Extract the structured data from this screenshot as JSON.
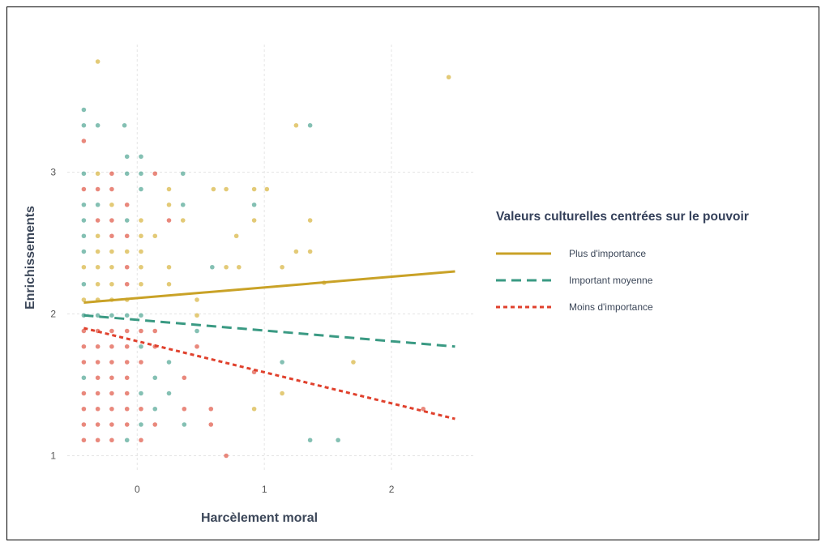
{
  "chart_data": {
    "type": "scatter",
    "xlabel": "Harcèlement moral",
    "ylabel": "Enrichissements",
    "xlim": [
      -0.55,
      2.65
    ],
    "ylim": [
      0.9,
      3.9
    ],
    "x_ticks": [
      0,
      1,
      2
    ],
    "y_ticks": [
      1,
      2,
      3
    ],
    "x_tick_labels": [
      "0",
      "1",
      "2"
    ],
    "y_tick_labels": [
      "1",
      "2",
      "3"
    ],
    "grid": true,
    "legend_placement": "right",
    "legend": {
      "title": "Valeurs culturelles centrées sur le pouvoir",
      "entries": [
        {
          "label": "Plus d'importance",
          "color": "#c9a227",
          "line_style": "solid"
        },
        {
          "label": "Important moyenne",
          "color": "#3a9a83",
          "line_style": "dashed"
        },
        {
          "label": "Moins d'importance",
          "color": "#e0412d",
          "line_style": "dotted"
        }
      ]
    },
    "lines": [
      {
        "name": "Plus d'importance",
        "color": "#c9a227",
        "style": "solid",
        "x": [
          -0.42,
          2.5
        ],
        "y": [
          2.08,
          2.3
        ]
      },
      {
        "name": "Important moyenne",
        "color": "#3a9a83",
        "style": "dashed",
        "x": [
          -0.42,
          2.5
        ],
        "y": [
          1.99,
          1.77
        ]
      },
      {
        "name": "Moins d'importance",
        "color": "#e0412d",
        "style": "dotted",
        "x": [
          -0.42,
          2.5
        ],
        "y": [
          1.9,
          1.26
        ]
      }
    ],
    "points": [
      {
        "x": -0.42,
        "y": 1.11,
        "c": "r"
      },
      {
        "x": -0.31,
        "y": 1.11,
        "c": "r"
      },
      {
        "x": -0.2,
        "y": 1.11,
        "c": "r"
      },
      {
        "x": -0.08,
        "y": 1.11,
        "c": "g"
      },
      {
        "x": 0.03,
        "y": 1.11,
        "c": "r"
      },
      {
        "x": -0.42,
        "y": 1.22,
        "c": "r"
      },
      {
        "x": -0.31,
        "y": 1.22,
        "c": "r"
      },
      {
        "x": -0.2,
        "y": 1.22,
        "c": "r"
      },
      {
        "x": -0.08,
        "y": 1.22,
        "c": "r"
      },
      {
        "x": 0.03,
        "y": 1.22,
        "c": "g"
      },
      {
        "x": 0.14,
        "y": 1.22,
        "c": "r"
      },
      {
        "x": 0.37,
        "y": 1.22,
        "c": "g"
      },
      {
        "x": -0.42,
        "y": 1.33,
        "c": "r"
      },
      {
        "x": -0.31,
        "y": 1.33,
        "c": "r"
      },
      {
        "x": -0.2,
        "y": 1.33,
        "c": "r"
      },
      {
        "x": -0.08,
        "y": 1.33,
        "c": "r"
      },
      {
        "x": 0.03,
        "y": 1.33,
        "c": "r"
      },
      {
        "x": 0.14,
        "y": 1.33,
        "c": "g"
      },
      {
        "x": 0.37,
        "y": 1.33,
        "c": "r"
      },
      {
        "x": -0.42,
        "y": 1.44,
        "c": "r"
      },
      {
        "x": -0.31,
        "y": 1.44,
        "c": "r"
      },
      {
        "x": -0.2,
        "y": 1.44,
        "c": "r"
      },
      {
        "x": -0.08,
        "y": 1.44,
        "c": "r"
      },
      {
        "x": 0.03,
        "y": 1.44,
        "c": "g"
      },
      {
        "x": 0.25,
        "y": 1.44,
        "c": "g"
      },
      {
        "x": -0.42,
        "y": 1.55,
        "c": "g"
      },
      {
        "x": -0.31,
        "y": 1.55,
        "c": "r"
      },
      {
        "x": -0.2,
        "y": 1.55,
        "c": "r"
      },
      {
        "x": -0.08,
        "y": 1.55,
        "c": "r"
      },
      {
        "x": 0.14,
        "y": 1.55,
        "c": "g"
      },
      {
        "x": 0.37,
        "y": 1.55,
        "c": "r"
      },
      {
        "x": -0.42,
        "y": 1.66,
        "c": "r"
      },
      {
        "x": -0.31,
        "y": 1.66,
        "c": "r"
      },
      {
        "x": -0.2,
        "y": 1.66,
        "c": "r"
      },
      {
        "x": -0.08,
        "y": 1.66,
        "c": "r"
      },
      {
        "x": 0.03,
        "y": 1.66,
        "c": "r"
      },
      {
        "x": 0.25,
        "y": 1.66,
        "c": "g"
      },
      {
        "x": -0.42,
        "y": 1.77,
        "c": "r"
      },
      {
        "x": -0.31,
        "y": 1.77,
        "c": "r"
      },
      {
        "x": -0.2,
        "y": 1.77,
        "c": "r"
      },
      {
        "x": -0.08,
        "y": 1.77,
        "c": "r"
      },
      {
        "x": 0.03,
        "y": 1.77,
        "c": "g"
      },
      {
        "x": 0.14,
        "y": 1.77,
        "c": "r"
      },
      {
        "x": -0.42,
        "y": 1.88,
        "c": "r"
      },
      {
        "x": -0.31,
        "y": 1.88,
        "c": "r"
      },
      {
        "x": -0.2,
        "y": 1.88,
        "c": "r"
      },
      {
        "x": -0.08,
        "y": 1.88,
        "c": "r"
      },
      {
        "x": 0.03,
        "y": 1.88,
        "c": "r"
      },
      {
        "x": 0.14,
        "y": 1.88,
        "c": "r"
      },
      {
        "x": -0.42,
        "y": 1.99,
        "c": "g"
      },
      {
        "x": -0.31,
        "y": 1.99,
        "c": "g"
      },
      {
        "x": -0.2,
        "y": 1.99,
        "c": "g"
      },
      {
        "x": -0.08,
        "y": 1.99,
        "c": "g"
      },
      {
        "x": 0.03,
        "y": 1.99,
        "c": "g"
      },
      {
        "x": -0.42,
        "y": 2.1,
        "c": "y"
      },
      {
        "x": -0.31,
        "y": 2.1,
        "c": "y"
      },
      {
        "x": -0.2,
        "y": 2.1,
        "c": "y"
      },
      {
        "x": -0.08,
        "y": 2.1,
        "c": "y"
      },
      {
        "x": -0.42,
        "y": 2.21,
        "c": "g"
      },
      {
        "x": -0.31,
        "y": 2.21,
        "c": "y"
      },
      {
        "x": -0.2,
        "y": 2.21,
        "c": "y"
      },
      {
        "x": -0.08,
        "y": 2.21,
        "c": "r"
      },
      {
        "x": 0.03,
        "y": 2.21,
        "c": "y"
      },
      {
        "x": 0.25,
        "y": 2.21,
        "c": "y"
      },
      {
        "x": -0.42,
        "y": 2.33,
        "c": "y"
      },
      {
        "x": -0.31,
        "y": 2.33,
        "c": "y"
      },
      {
        "x": -0.2,
        "y": 2.33,
        "c": "y"
      },
      {
        "x": -0.08,
        "y": 2.33,
        "c": "r"
      },
      {
        "x": 0.03,
        "y": 2.33,
        "c": "y"
      },
      {
        "x": 0.25,
        "y": 2.33,
        "c": "y"
      },
      {
        "x": -0.42,
        "y": 2.44,
        "c": "g"
      },
      {
        "x": -0.31,
        "y": 2.44,
        "c": "y"
      },
      {
        "x": -0.2,
        "y": 2.44,
        "c": "y"
      },
      {
        "x": -0.08,
        "y": 2.44,
        "c": "y"
      },
      {
        "x": 0.03,
        "y": 2.44,
        "c": "y"
      },
      {
        "x": -0.42,
        "y": 2.55,
        "c": "g"
      },
      {
        "x": -0.31,
        "y": 2.55,
        "c": "y"
      },
      {
        "x": -0.2,
        "y": 2.55,
        "c": "r"
      },
      {
        "x": -0.08,
        "y": 2.55,
        "c": "r"
      },
      {
        "x": 0.03,
        "y": 2.55,
        "c": "y"
      },
      {
        "x": 0.14,
        "y": 2.55,
        "c": "y"
      },
      {
        "x": -0.42,
        "y": 2.66,
        "c": "g"
      },
      {
        "x": -0.31,
        "y": 2.66,
        "c": "r"
      },
      {
        "x": -0.2,
        "y": 2.66,
        "c": "r"
      },
      {
        "x": -0.08,
        "y": 2.66,
        "c": "g"
      },
      {
        "x": 0.03,
        "y": 2.66,
        "c": "y"
      },
      {
        "x": 0.25,
        "y": 2.66,
        "c": "r"
      },
      {
        "x": 0.36,
        "y": 2.66,
        "c": "y"
      },
      {
        "x": -0.42,
        "y": 2.77,
        "c": "g"
      },
      {
        "x": -0.31,
        "y": 2.77,
        "c": "g"
      },
      {
        "x": -0.2,
        "y": 2.77,
        "c": "y"
      },
      {
        "x": -0.08,
        "y": 2.77,
        "c": "r"
      },
      {
        "x": 0.25,
        "y": 2.77,
        "c": "y"
      },
      {
        "x": 0.36,
        "y": 2.77,
        "c": "g"
      },
      {
        "x": -0.42,
        "y": 2.88,
        "c": "r"
      },
      {
        "x": -0.31,
        "y": 2.88,
        "c": "r"
      },
      {
        "x": -0.2,
        "y": 2.88,
        "c": "r"
      },
      {
        "x": 0.03,
        "y": 2.88,
        "c": "g"
      },
      {
        "x": 0.25,
        "y": 2.88,
        "c": "y"
      },
      {
        "x": 0.6,
        "y": 2.88,
        "c": "y"
      },
      {
        "x": 0.7,
        "y": 2.88,
        "c": "y"
      },
      {
        "x": 0.92,
        "y": 2.88,
        "c": "y"
      },
      {
        "x": 1.02,
        "y": 2.88,
        "c": "y"
      },
      {
        "x": -0.42,
        "y": 2.99,
        "c": "g"
      },
      {
        "x": -0.31,
        "y": 2.99,
        "c": "y"
      },
      {
        "x": -0.2,
        "y": 2.99,
        "c": "r"
      },
      {
        "x": -0.08,
        "y": 2.99,
        "c": "g"
      },
      {
        "x": 0.03,
        "y": 2.99,
        "c": "g"
      },
      {
        "x": 0.14,
        "y": 2.99,
        "c": "r"
      },
      {
        "x": 0.36,
        "y": 2.99,
        "c": "g"
      },
      {
        "x": -0.08,
        "y": 3.11,
        "c": "g"
      },
      {
        "x": 0.03,
        "y": 3.11,
        "c": "g"
      },
      {
        "x": -0.42,
        "y": 3.22,
        "c": "r"
      },
      {
        "x": -0.42,
        "y": 3.33,
        "c": "g"
      },
      {
        "x": -0.31,
        "y": 3.33,
        "c": "g"
      },
      {
        "x": -0.1,
        "y": 3.33,
        "c": "g"
      },
      {
        "x": 1.25,
        "y": 3.33,
        "c": "y"
      },
      {
        "x": 1.36,
        "y": 3.33,
        "c": "g"
      },
      {
        "x": -0.42,
        "y": 3.44,
        "c": "g"
      },
      {
        "x": -0.31,
        "y": 3.78,
        "c": "y"
      },
      {
        "x": 2.45,
        "y": 3.67,
        "c": "y"
      },
      {
        "x": 0.47,
        "y": 1.99,
        "c": "y"
      },
      {
        "x": 0.47,
        "y": 2.1,
        "c": "y"
      },
      {
        "x": 0.47,
        "y": 1.88,
        "c": "g"
      },
      {
        "x": 0.47,
        "y": 1.77,
        "c": "r"
      },
      {
        "x": 0.58,
        "y": 1.33,
        "c": "r"
      },
      {
        "x": 0.58,
        "y": 1.22,
        "c": "r"
      },
      {
        "x": 0.59,
        "y": 2.33,
        "c": "g"
      },
      {
        "x": 0.7,
        "y": 2.33,
        "c": "y"
      },
      {
        "x": 0.7,
        "y": 1.0,
        "c": "r"
      },
      {
        "x": 0.78,
        "y": 2.55,
        "c": "y"
      },
      {
        "x": 0.8,
        "y": 2.33,
        "c": "y"
      },
      {
        "x": 0.92,
        "y": 2.77,
        "c": "g"
      },
      {
        "x": 0.92,
        "y": 2.66,
        "c": "y"
      },
      {
        "x": 0.92,
        "y": 1.59,
        "c": "r"
      },
      {
        "x": 0.92,
        "y": 1.33,
        "c": "y"
      },
      {
        "x": 1.14,
        "y": 1.66,
        "c": "g"
      },
      {
        "x": 1.14,
        "y": 1.44,
        "c": "y"
      },
      {
        "x": 1.14,
        "y": 2.33,
        "c": "y"
      },
      {
        "x": 1.25,
        "y": 2.44,
        "c": "y"
      },
      {
        "x": 1.36,
        "y": 2.44,
        "c": "y"
      },
      {
        "x": 1.36,
        "y": 2.66,
        "c": "y"
      },
      {
        "x": 1.36,
        "y": 1.11,
        "c": "g"
      },
      {
        "x": 1.58,
        "y": 1.11,
        "c": "g"
      },
      {
        "x": 1.47,
        "y": 2.22,
        "c": "y"
      },
      {
        "x": 1.7,
        "y": 1.66,
        "c": "y"
      },
      {
        "x": 2.25,
        "y": 1.33,
        "c": "r"
      }
    ]
  },
  "point_colors": {
    "r": "#e05a4a",
    "g": "#55a896",
    "y": "#d8b642"
  }
}
